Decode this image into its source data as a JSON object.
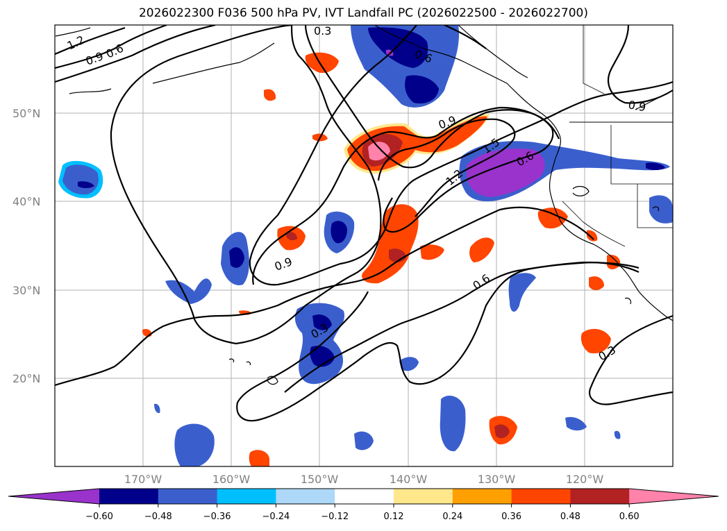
{
  "title": "2026022300 F036 500 hPa PV, IVT Landfall PC (2026022500 - 2026022700)",
  "lat_labels": [
    "50°N",
    "40°N",
    "30°N",
    "20°N"
  ],
  "lon_labels": [
    "170°W",
    "160°W",
    "150°W",
    "140°W",
    "130°W",
    "120°W"
  ],
  "colorbar": {
    "ticks": [
      "−0.60",
      "−0.48",
      "−0.36",
      "−0.24",
      "−0.12",
      "0.12",
      "0.24",
      "0.36",
      "0.48",
      "0.60"
    ],
    "colors": [
      "#9933cc",
      "#00008b",
      "#3a5fcd",
      "#00bfff",
      "#add8f7",
      "#ffffff",
      "#ffe78c",
      "#ffa000",
      "#ff4500",
      "#b22222",
      "#ff82ab"
    ]
  },
  "contour_labels": [
    "1.2",
    "0.9",
    "0.6",
    "0.3",
    "0.6",
    "0.9",
    "0.9",
    "1.5",
    "0.6",
    "1.2",
    "0.9",
    "0.6",
    "0.3",
    "0.3"
  ],
  "colors": {
    "grid": "#b0b0b0",
    "contour": "#000000",
    "coast": "#000000"
  }
}
